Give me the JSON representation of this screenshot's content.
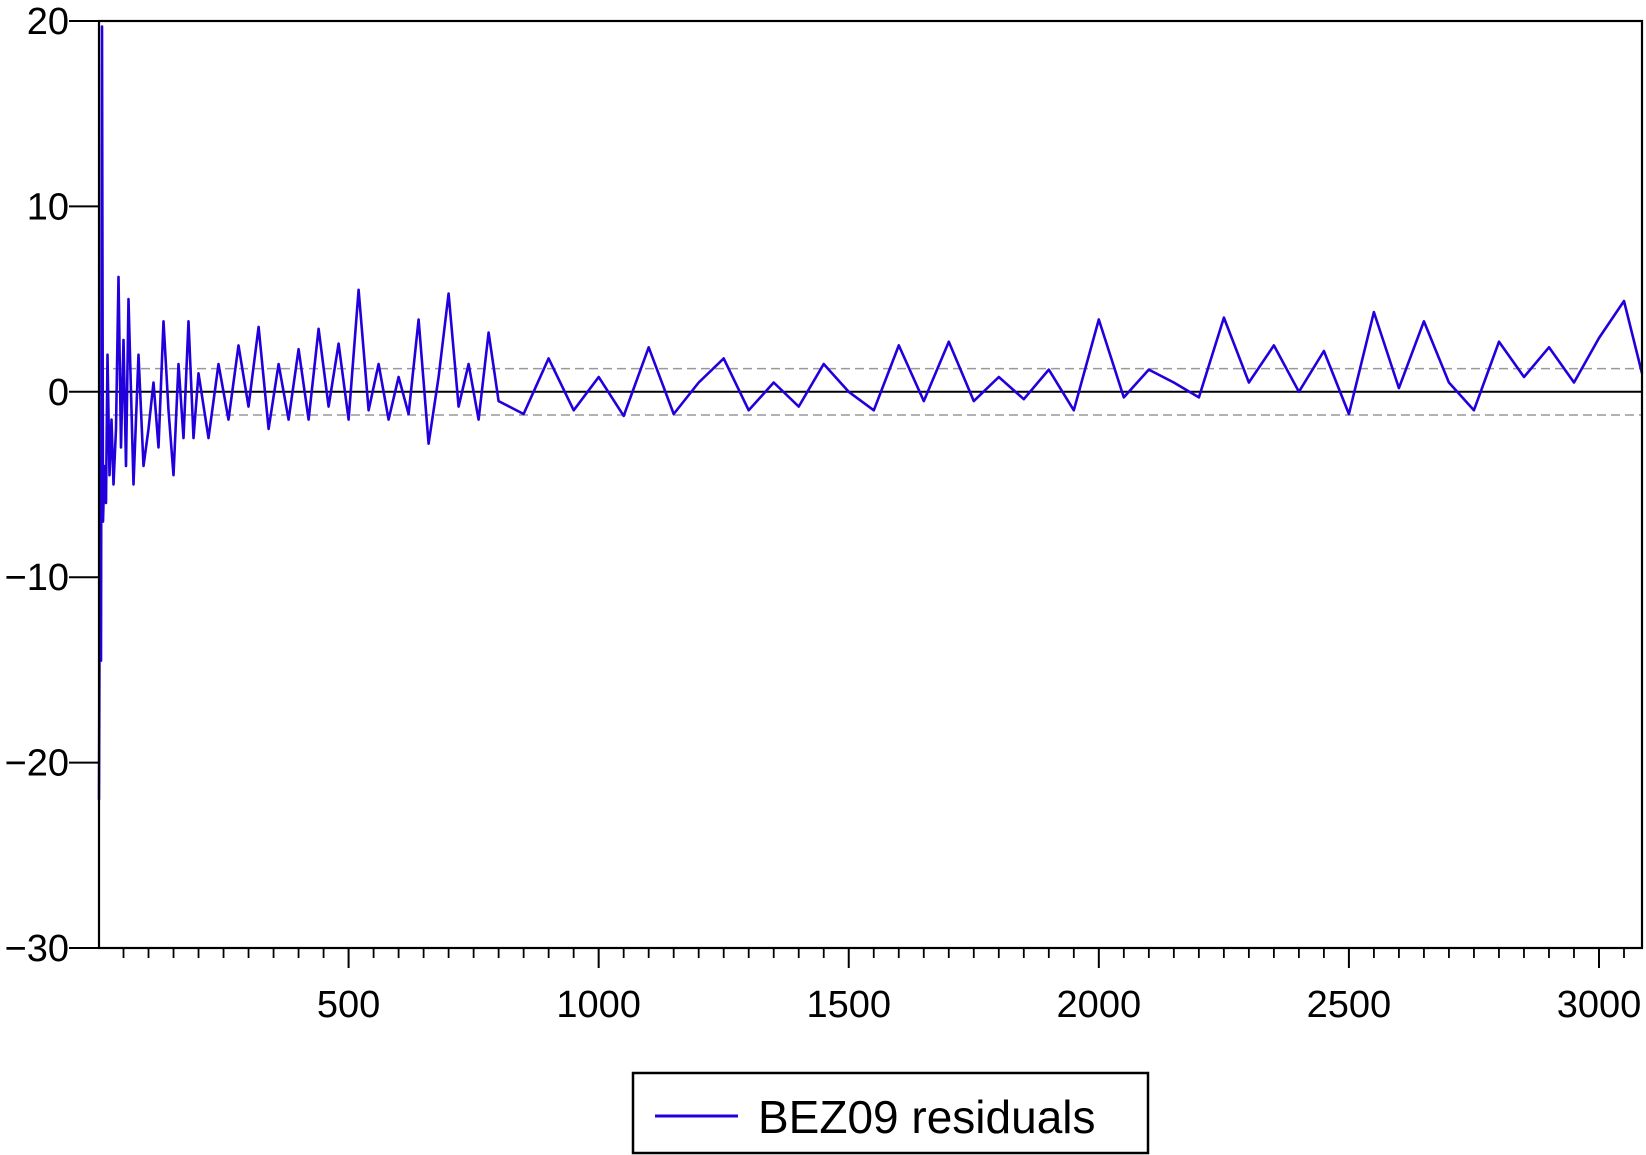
{
  "chart_data": {
    "type": "line",
    "title": "",
    "xlabel": "",
    "ylabel": "",
    "xlim": [
      1,
      3086
    ],
    "ylim": [
      -30,
      20
    ],
    "x_ticks": [
      500,
      1000,
      1500,
      2000,
      2500,
      3000
    ],
    "x_tick_labels": [
      "500",
      "1000",
      "1500",
      "2000",
      "2500",
      "3000"
    ],
    "x_minor_tick_step": 50,
    "y_ticks": [
      20,
      10,
      0,
      -10,
      -20,
      -30
    ],
    "y_tick_labels": [
      "20",
      "10",
      "0",
      "−10",
      "−20",
      "−30"
    ],
    "grid": false,
    "zero_line": 0,
    "band_lines": [
      1.25,
      -1.25
    ],
    "legend": {
      "position": "bottom-center",
      "entries": [
        "BEZ09 residuals"
      ]
    },
    "series": [
      {
        "name": "BEZ09 residuals",
        "color": "#2200dd",
        "x": [
          1,
          3,
          5,
          7,
          9,
          12,
          15,
          18,
          22,
          26,
          30,
          35,
          40,
          45,
          50,
          55,
          60,
          70,
          80,
          90,
          100,
          110,
          120,
          130,
          140,
          150,
          160,
          170,
          180,
          190,
          200,
          220,
          240,
          260,
          280,
          300,
          320,
          340,
          360,
          380,
          400,
          420,
          440,
          460,
          480,
          500,
          520,
          540,
          560,
          580,
          600,
          620,
          640,
          660,
          680,
          700,
          720,
          740,
          760,
          780,
          800,
          850,
          900,
          950,
          1000,
          1050,
          1100,
          1150,
          1200,
          1250,
          1300,
          1350,
          1400,
          1450,
          1500,
          1550,
          1600,
          1650,
          1700,
          1750,
          1800,
          1850,
          1900,
          1950,
          2000,
          2050,
          2100,
          2150,
          2200,
          2250,
          2300,
          2350,
          2400,
          2450,
          2500,
          2550,
          2600,
          2650,
          2700,
          2750,
          2800,
          2850,
          2900,
          2950,
          3000,
          3050,
          3086
        ],
        "values": [
          -22,
          -5,
          -14.5,
          19.7,
          -7,
          -4,
          -6,
          2,
          -4.5,
          -1.5,
          -5,
          -2,
          6.2,
          -3,
          2.8,
          -4,
          5,
          -5,
          2,
          -4,
          -2,
          0.5,
          -3,
          3.8,
          -1,
          -4.5,
          1.5,
          -2.5,
          3.8,
          -2.5,
          1,
          -2.5,
          1.5,
          -1.5,
          2.5,
          -0.8,
          3.5,
          -2,
          1.5,
          -1.5,
          2.3,
          -1.5,
          3.4,
          -0.8,
          2.6,
          -1.5,
          5.5,
          -1,
          1.5,
          -1.5,
          0.8,
          -1.2,
          3.9,
          -2.8,
          0.8,
          5.3,
          -0.8,
          1.5,
          -1.5,
          3.2,
          -0.5,
          -1.2,
          1.8,
          -1,
          0.8,
          -1.3,
          2.4,
          -1.2,
          0.5,
          1.8,
          -1,
          0.5,
          -0.8,
          1.5,
          0,
          -1,
          2.5,
          -0.5,
          2.7,
          -0.5,
          0.8,
          -0.4,
          1.2,
          -1,
          3.9,
          -0.3,
          1.2,
          0.5,
          -0.3,
          4,
          0.5,
          2.5,
          0,
          2.2,
          -1.2,
          4.3,
          0.2,
          3.8,
          0.5,
          -1,
          2.7,
          0.8,
          2.4,
          0.5,
          2.9,
          4.9,
          1
        ]
      }
    ]
  }
}
